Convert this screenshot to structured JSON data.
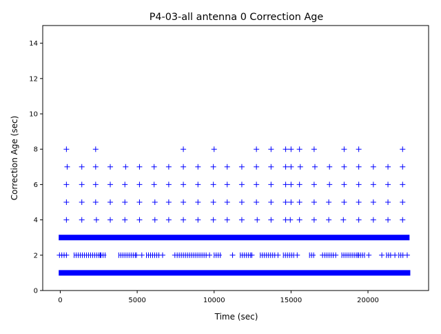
{
  "chart_data": {
    "type": "scatter",
    "title": "P4-03-all antenna 0 Correction Age",
    "xlabel": "Time (sec)",
    "ylabel": "Correction Age (sec)",
    "xlim": [
      -1140,
      23940
    ],
    "ylim": [
      0,
      15
    ],
    "xticks": [
      0,
      5000,
      10000,
      15000,
      20000
    ],
    "xtick_labels": [
      "0",
      "5000",
      "10000",
      "15000",
      "20000"
    ],
    "yticks": [
      0,
      2,
      4,
      6,
      8,
      10,
      12,
      14
    ],
    "ytick_labels": [
      "0",
      "2",
      "4",
      "6",
      "8",
      "10",
      "12",
      "14"
    ],
    "grid": false,
    "legend": "none",
    "marker": "+",
    "marker_color": "#0000ff",
    "series": [
      {
        "bands": [
          {
            "y": 1,
            "x_start": -100,
            "x_end": 22750
          },
          {
            "y": 3,
            "x_start": -100,
            "x_end": 22700
          }
        ],
        "points": [
          {
            "y": 8,
            "x": [
              400,
              2300,
              8000,
              10000,
              12750,
              13700,
              14650,
              15000,
              15550,
              16500,
              18450,
              19400,
              22250
            ]
          },
          {
            "y": 7,
            "x": [
              450,
              1400,
              2300,
              3250,
              4250,
              5150,
              6100,
              7050,
              8000,
              8950,
              9950,
              10850,
              11800,
              12750,
              13700,
              14650,
              15000,
              15600,
              16550,
              17500,
              18450,
              19400,
              20350,
              21300,
              22250
            ]
          },
          {
            "y": 6,
            "x": [
              400,
              1400,
              2300,
              3250,
              4200,
              5150,
              6100,
              7050,
              8000,
              8950,
              9950,
              10850,
              11800,
              12750,
              13700,
              14650,
              15000,
              15550,
              16500,
              17500,
              18450,
              19400,
              20350,
              21300,
              22250
            ]
          },
          {
            "y": 5,
            "x": [
              400,
              1400,
              2300,
              3250,
              4200,
              5150,
              6150,
              7050,
              8000,
              8950,
              9950,
              10850,
              11800,
              12750,
              13700,
              14650,
              15000,
              15550,
              16500,
              17450,
              18450,
              19400,
              20350,
              21300,
              22250
            ]
          },
          {
            "y": 4,
            "x": [
              400,
              1400,
              2350,
              3250,
              4200,
              5150,
              6150,
              7050,
              8000,
              8950,
              9950,
              10850,
              11800,
              12800,
              13700,
              14650,
              14950,
              15550,
              16500,
              17450,
              18400,
              19400,
              20350,
              21300,
              22250
            ]
          },
          {
            "y": 2,
            "x": [
              -50,
              100,
              250,
              400,
              2600,
              4950,
              5300,
              6650,
              7450,
              9700,
              11200,
              12450,
              14150,
              15400,
              17050,
              17900,
              19350,
              20050,
              20900,
              21750,
              22550
            ]
          }
        ],
        "dense_y2": [
          {
            "x_start": 900,
            "x_end": 3000
          },
          {
            "x_start": 3800,
            "x_end": 5000
          },
          {
            "x_start": 5600,
            "x_end": 6500
          },
          {
            "x_start": 7600,
            "x_end": 9600
          },
          {
            "x_start": 10000,
            "x_end": 10500
          },
          {
            "x_start": 11700,
            "x_end": 12500
          },
          {
            "x_start": 13000,
            "x_end": 14000
          },
          {
            "x_start": 14500,
            "x_end": 15200
          },
          {
            "x_start": 16200,
            "x_end": 16600
          },
          {
            "x_start": 17200,
            "x_end": 17800
          },
          {
            "x_start": 18300,
            "x_end": 19800
          },
          {
            "x_start": 21200,
            "x_end": 21600
          },
          {
            "x_start": 22000,
            "x_end": 22400
          }
        ]
      }
    ]
  }
}
